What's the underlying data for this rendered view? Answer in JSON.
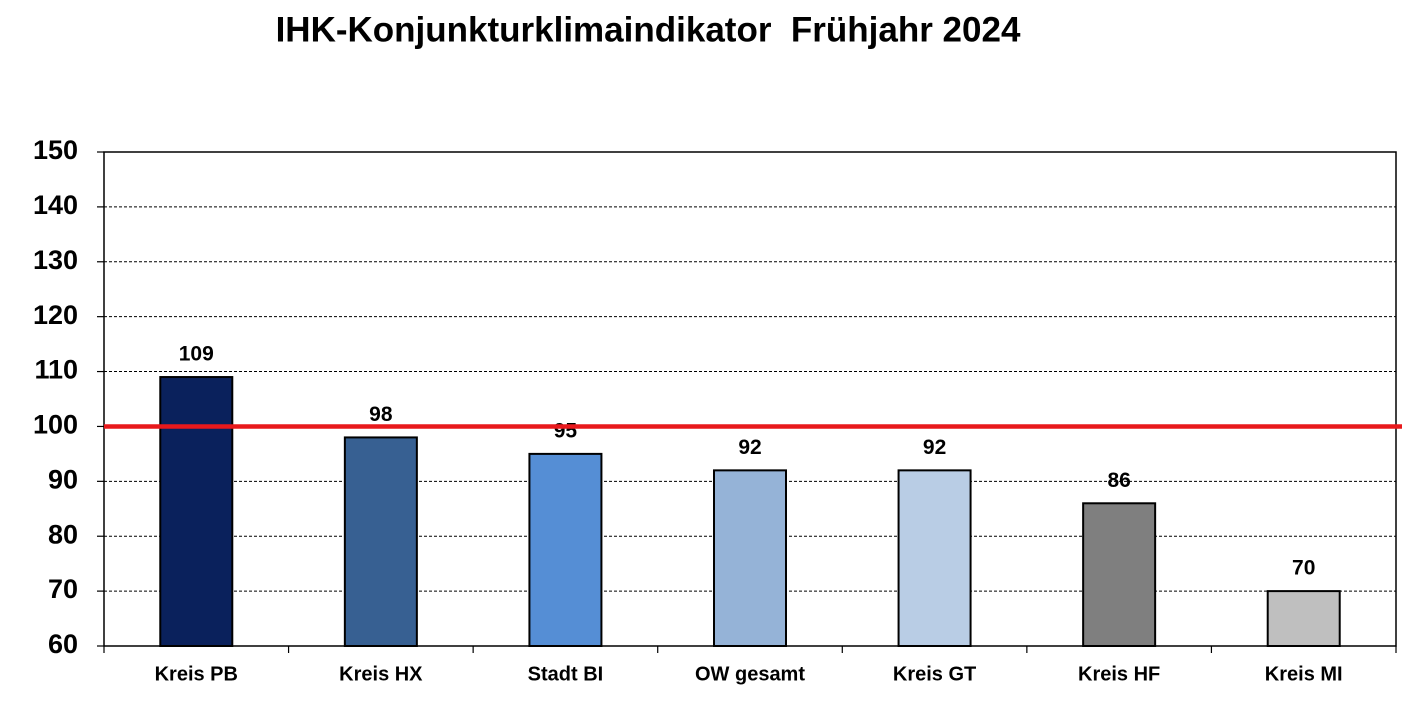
{
  "chart_data": {
    "type": "bar",
    "title": "IHK-Konjunkturklimaindikator  Frühjahr 2024",
    "categories": [
      "Kreis PB",
      "Kreis HX",
      "Stadt BI",
      "OW gesamt",
      "Kreis GT",
      "Kreis HF",
      "Kreis MI"
    ],
    "values": [
      109,
      98,
      95,
      92,
      92,
      86,
      70
    ],
    "colors": [
      "#0a215c",
      "#376092",
      "#558ed5",
      "#95b3d7",
      "#b9cde5",
      "#7f7f7f",
      "#bfbfbf"
    ],
    "ylim": [
      60,
      150
    ],
    "yticks": [
      60,
      70,
      80,
      90,
      100,
      110,
      120,
      130,
      140,
      150
    ],
    "grid": true,
    "reference_line": {
      "value": 100,
      "color": "#e8191c"
    }
  }
}
